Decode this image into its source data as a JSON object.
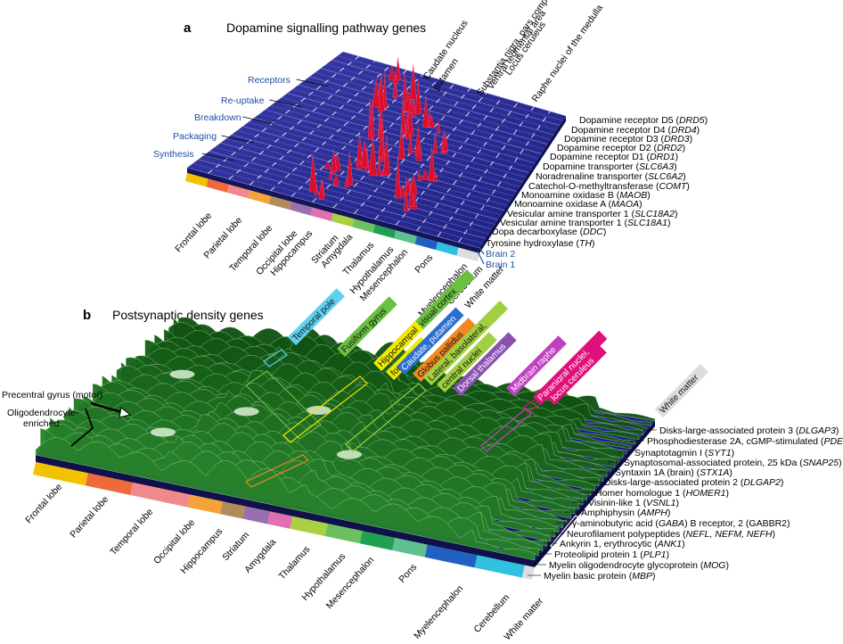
{
  "panel_a": {
    "letter": "a",
    "title": "Dopamine signalling pathway genes",
    "categories": [
      "Receptors",
      "Re-uptake",
      "Breakdown",
      "Packaging",
      "Synthesis"
    ],
    "top_regions": [
      "Caudate nucleus",
      "putamen",
      "Substantia nigra, pars compacta",
      "Ventral tegmental area",
      "Locus ceruleus",
      "Raphe nuclei of the medulla"
    ],
    "genes": [
      {
        "name": "Dopamine receptor D5 (",
        "sym": "DRD5",
        "tail": ")"
      },
      {
        "name": "Dopamine receptor D4 (",
        "sym": "DRD4",
        "tail": ")"
      },
      {
        "name": "Dopamine receptor D3 (",
        "sym": "DRD3",
        "tail": ")"
      },
      {
        "name": "Dopamine receptor D2 (",
        "sym": "DRD2",
        "tail": ")"
      },
      {
        "name": "Dopamine receptor D1 (",
        "sym": "DRD1",
        "tail": ")"
      },
      {
        "name": "Dopamine transporter (",
        "sym": "SLC6A3",
        "tail": ")"
      },
      {
        "name": "Noradrenaline transporter (",
        "sym": "SLC6A2",
        "tail": ")"
      },
      {
        "name": "Catechol-O-methyltransferase (",
        "sym": "COMT",
        "tail": ")"
      },
      {
        "name": "Monoamine oxidase B (",
        "sym": "MAOB",
        "tail": ")"
      },
      {
        "name": "Monoamine oxidase A (",
        "sym": "MAOA",
        "tail": ")"
      },
      {
        "name": "Vesicular amine transporter 1 (",
        "sym": "SLC18A2",
        "tail": ")"
      },
      {
        "name": "Vesicular amine transporter 1 (",
        "sym": "SLC18A1",
        "tail": ")"
      },
      {
        "name": "Dopa decarboxylase (",
        "sym": "DDC",
        "tail": ")"
      },
      {
        "name": "Tyrosine hydroxylase (",
        "sym": "TH",
        "tail": ")"
      }
    ],
    "brains": [
      "Brain 2",
      "Brain 1"
    ],
    "regions": [
      "Frontal lobe",
      "Parietal lobe",
      "Temporal lobe",
      "Occipital lobe",
      "Hippocampus",
      "Striatum",
      "Amygdala",
      "Thalamus",
      "Hypothalamus",
      "Mesencephalon",
      "Pons",
      "Myelencephalon",
      "Cerebellum",
      "White matter"
    ],
    "region_colors": [
      "#f2c200",
      "#ef6a3a",
      "#f08a8a",
      "#f5a23a",
      "#b08c5a",
      "#9a6fb0",
      "#e070b0",
      "#a8d040",
      "#6cc060",
      "#20a050",
      "#60c090",
      "#2060c0",
      "#30c0e0",
      "#dddddd"
    ]
  },
  "panel_b": {
    "letter": "b",
    "title": "Postsynaptic density genes",
    "left_labels": [
      "Precentral gyrus (motor)",
      "Oligodendrocyte-",
      "enriched"
    ],
    "tags": [
      {
        "text": "Temporal pole",
        "color": "#5fd0f0"
      },
      {
        "text": "Fusiform gyrus",
        "color": "#6ac040"
      },
      {
        "text": "Primary visual cortex",
        "color": "#6ac040"
      },
      {
        "text": "Hippocampal",
        "color": "#f2e800"
      },
      {
        "text": "formation",
        "color": "#f2e800"
      },
      {
        "text": "Caudate, putamen",
        "color": "#2a6fd0"
      },
      {
        "text": "Globus pallidus",
        "color": "#f08a20"
      },
      {
        "text": "Lateral, basolateral,",
        "color": "#a0d040"
      },
      {
        "text": "central nuclei",
        "color": "#a0d040"
      },
      {
        "text": "Dorsal thalamus",
        "color": "#8a50b0"
      },
      {
        "text": "Midbrain raphe",
        "color": "#c040c0"
      },
      {
        "text": "Paranigral nuclei,",
        "color": "#e0107a"
      },
      {
        "text": "locus ceruleus",
        "color": "#e0107a"
      },
      {
        "text": "White matter",
        "color": "#dddddd"
      }
    ],
    "genes": [
      {
        "name": "Disks-large-associated protein 3 (",
        "sym": "DLGAP3",
        "tail": ")"
      },
      {
        "name": "Phosphodiesterase 2A, cGMP-stimulated (",
        "sym": "PDE2A",
        "tail": ")"
      },
      {
        "name": "Synaptotagmin I (",
        "sym": "SYT1",
        "tail": ")"
      },
      {
        "name": "Synaptosomal-associated protein, 25 kDa (",
        "sym": "SNAP25",
        "tail": ")"
      },
      {
        "name": "Syntaxin 1A (brain)  (",
        "sym": "STX1A",
        "tail": ")"
      },
      {
        "name": "Disks-large-associated protein 2 (",
        "sym": "DLGAP2",
        "tail": ")"
      },
      {
        "name": "Homer homologue 1 (",
        "sym": "HOMER1",
        "tail": ")"
      },
      {
        "name": "Visinin-like 1 (",
        "sym": "VSNL1",
        "tail": ")"
      },
      {
        "name": "Amphiphysin (",
        "sym": "AMPH",
        "tail": ")"
      },
      {
        "name": "γ-aminobutyric acid (",
        "sym": "GABA",
        "tail": ") B receptor, 2 (GABBR2)"
      },
      {
        "name": "Neurofilament polypeptides (",
        "sym": "NEFL, NEFM, NEFH",
        "tail": ")"
      },
      {
        "name": "Ankyrin 1, erythrocytic (",
        "sym": "ANK1",
        "tail": ")"
      },
      {
        "name": "Proteolipid protein 1 (",
        "sym": "PLP1",
        "tail": ")"
      },
      {
        "name": "Myelin oligodendrocyte glycoprotein (",
        "sym": "MOG",
        "tail": ")"
      },
      {
        "name": "Myelin basic protein (",
        "sym": "MBP",
        "tail": ")"
      }
    ],
    "regions": [
      "Frontal lobe",
      "Parietal lobe",
      "Temporal lobe",
      "Occipital lobe",
      "Hippocampus",
      "Striatum",
      "Amygdala",
      "Thalamus",
      "Hypothalamus",
      "Mesencephalon",
      "Pons",
      "Myelencephalon",
      "Cerebellum",
      "White matter"
    ]
  }
}
